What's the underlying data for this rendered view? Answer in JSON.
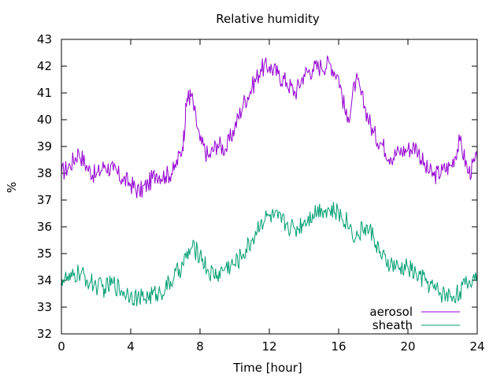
{
  "chart_data": {
    "type": "line",
    "title": "Relative humidity",
    "xlabel": "Time [hour]",
    "ylabel": "%",
    "xlim": [
      0,
      24
    ],
    "ylim": [
      32,
      43
    ],
    "xticks": [
      0,
      4,
      8,
      12,
      16,
      20,
      24
    ],
    "yticks": [
      32,
      33,
      34,
      35,
      36,
      37,
      38,
      39,
      40,
      41,
      42,
      43
    ],
    "grid": false,
    "legend_position": "bottom-right",
    "series": [
      {
        "name": "aerosol",
        "color": "#9400d3",
        "x": [
          0,
          0.5,
          1,
          1.5,
          2,
          2.5,
          3,
          3.5,
          4,
          4.5,
          5,
          5.5,
          6,
          6.5,
          7,
          7.25,
          7.5,
          8,
          8.5,
          9,
          9.5,
          10,
          10.5,
          11,
          11.5,
          12,
          12.5,
          13,
          13.5,
          14,
          14.5,
          15,
          15.5,
          16,
          16.5,
          17,
          17.5,
          18,
          18.5,
          19,
          19.5,
          20,
          20.5,
          21,
          21.5,
          22,
          22.5,
          23,
          23.5,
          24
        ],
        "values": [
          38.0,
          38.3,
          38.8,
          38.2,
          37.9,
          38.3,
          38.1,
          37.8,
          37.6,
          37.3,
          37.6,
          38.0,
          37.9,
          38.1,
          39.0,
          40.8,
          40.9,
          39.2,
          38.6,
          39.1,
          38.9,
          39.7,
          40.6,
          41.2,
          41.9,
          42.0,
          41.7,
          41.4,
          41.0,
          41.7,
          41.9,
          42.0,
          42.1,
          41.6,
          39.9,
          41.5,
          40.5,
          39.5,
          39.1,
          38.6,
          38.8,
          38.9,
          39.0,
          38.2,
          37.9,
          38.1,
          38.3,
          39.2,
          38.0,
          38.5
        ]
      },
      {
        "name": "sheath",
        "color": "#009e73",
        "x": [
          0,
          0.5,
          1,
          1.5,
          2,
          2.5,
          3,
          3.5,
          4,
          4.5,
          5,
          5.5,
          6,
          6.5,
          7,
          7.5,
          8,
          8.5,
          9,
          9.5,
          10,
          10.5,
          11,
          11.5,
          12,
          12.5,
          13,
          13.5,
          14,
          14.5,
          15,
          15.5,
          16,
          16.5,
          17,
          17.5,
          18,
          18.5,
          19,
          19.5,
          20,
          20.5,
          21,
          21.5,
          22,
          22.5,
          23,
          23.5,
          24
        ],
        "values": [
          34.1,
          34.0,
          34.3,
          34.0,
          33.8,
          33.7,
          33.9,
          33.6,
          33.5,
          33.3,
          33.4,
          33.5,
          33.7,
          34.1,
          34.6,
          35.2,
          35.0,
          34.3,
          34.2,
          34.5,
          34.6,
          35.0,
          35.5,
          36.2,
          36.4,
          36.3,
          36.1,
          35.9,
          36.2,
          36.5,
          36.7,
          36.6,
          36.5,
          36.2,
          35.6,
          36.0,
          35.7,
          34.8,
          34.6,
          34.4,
          34.5,
          34.2,
          34.0,
          33.7,
          33.5,
          33.4,
          33.6,
          33.9,
          34.3
        ]
      }
    ]
  }
}
